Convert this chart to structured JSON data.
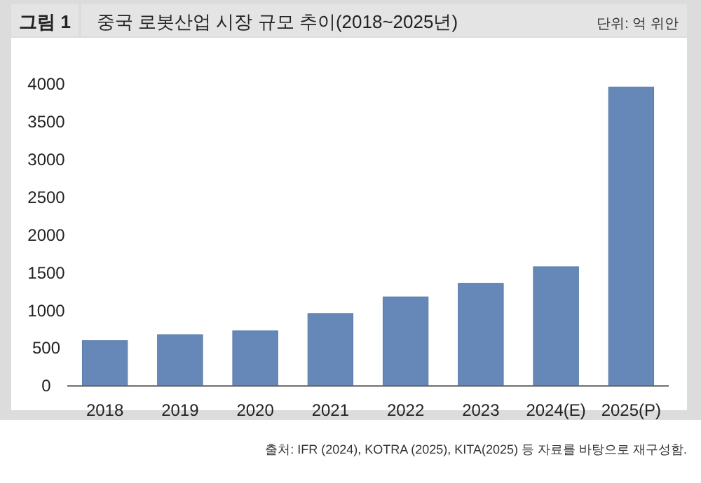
{
  "chart_data": {
    "type": "bar",
    "title": "중국 로봇산업 시장 규모 추이(2018~2025년)",
    "ylabel": "단위: 억 위안",
    "annotations": [
      "그림 1",
      "출처: IFR (2024), KOTRA (2025), KITA(2025) 등 자료를 바탕으로 재구성함."
    ],
    "categories": [
      "2018",
      "2019",
      "2020",
      "2021",
      "2022",
      "2023",
      "2024(E)",
      "2025(P)"
    ],
    "values": [
      600,
      680,
      730,
      960,
      1180,
      1360,
      1580,
      3960
    ],
    "color": "#6688b8",
    "ylim": [
      0,
      4000
    ],
    "yticks": [
      0,
      500,
      1000,
      1500,
      2000,
      2500,
      3000,
      3500,
      4000
    ],
    "grid": false
  }
}
